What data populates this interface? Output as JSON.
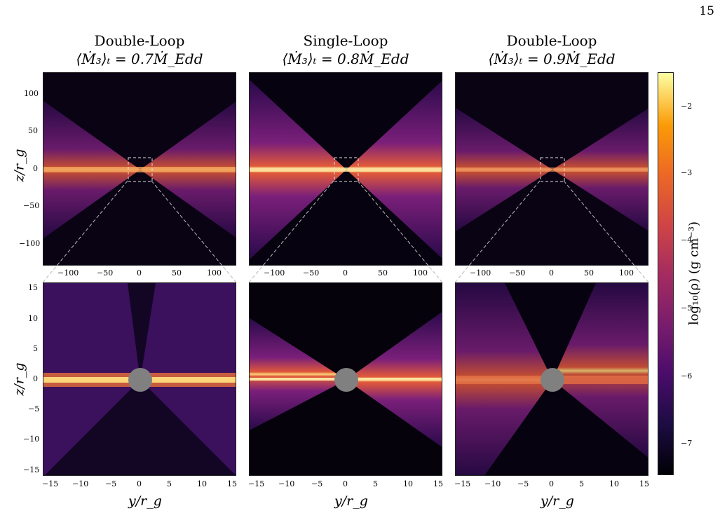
{
  "page_number": "15",
  "columns": [
    {
      "title": "Double-Loop",
      "subtitle": "⟨Ṁ₃⟩ₜ = 0.7Ṁ_Edd"
    },
    {
      "title": "Single-Loop",
      "subtitle": "⟨Ṁ₃⟩ₜ = 0.8Ṁ_Edd"
    },
    {
      "title": "Double-Loop",
      "subtitle": "⟨Ṁ₃⟩ₜ = 0.9Ṁ_Edd"
    }
  ],
  "top_row": {
    "ylabel": "z/r_g",
    "yticks": [
      "100",
      "50",
      "0",
      "−50",
      "−100"
    ],
    "xticks": [
      "−100",
      "−50",
      "0",
      "50",
      "100"
    ]
  },
  "bottom_row": {
    "ylabel": "z/r_g",
    "yticks": [
      "15",
      "10",
      "5",
      "0",
      "−5",
      "−10",
      "−15"
    ],
    "xticks": [
      "−15",
      "−10",
      "−5",
      "0",
      "5",
      "10",
      "15"
    ],
    "xlabel": "y/r_g"
  },
  "colorbar": {
    "label": "log₁₀(ρ) (g cm⁻³)",
    "ticks": [
      "−2",
      "−3",
      "−4",
      "−5",
      "−6",
      "−7"
    ],
    "colormap": "magma"
  },
  "colors": {
    "hole": "#808080",
    "background_low": "#000004",
    "midplane_high": "#fcffa4"
  }
}
